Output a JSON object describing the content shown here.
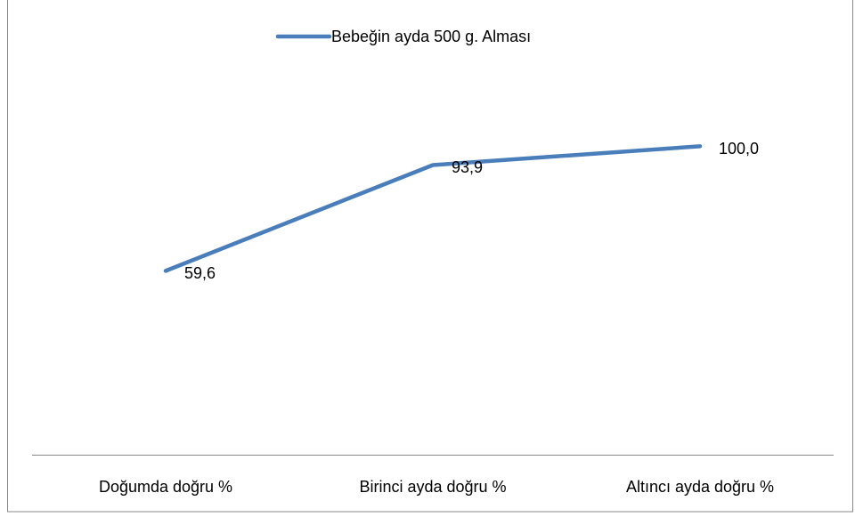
{
  "chart_data": {
    "type": "line",
    "categories": [
      "Doğumda doğru %",
      "Birinci ayda doğru %",
      "Altıncı ayda doğru %"
    ],
    "series": [
      {
        "name": "Bebeğin ayda 500 g. Alması",
        "color": "#4a7ebb",
        "values": [
          59.6,
          93.9,
          100.0
        ],
        "value_labels": [
          "59,6",
          "93,9",
          "100,0"
        ]
      }
    ],
    "ylim": [
      0,
      120
    ],
    "legend": "top"
  }
}
